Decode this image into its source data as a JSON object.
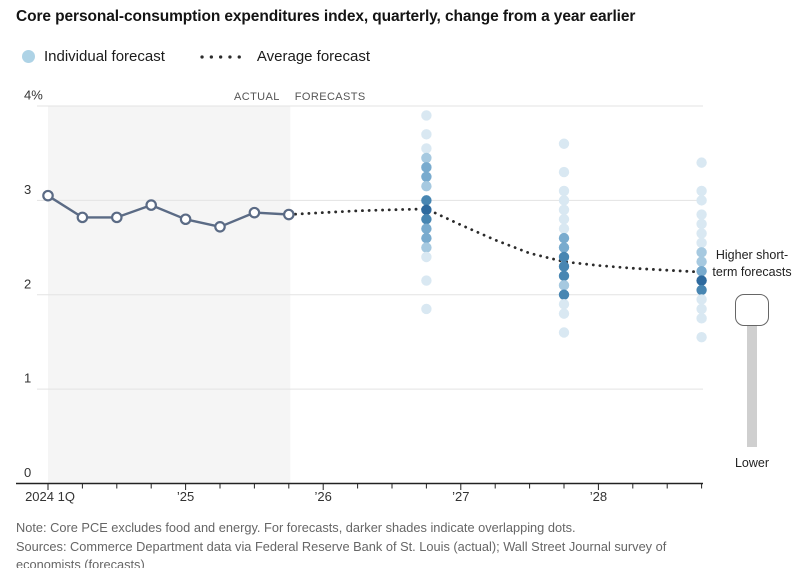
{
  "title": "Core personal-consumption expenditures index, quarterly, change from a year earlier",
  "legend": {
    "individual_label": "Individual forecast",
    "average_label": "Average forecast"
  },
  "annotation": {
    "higher_label": "Higher short-term forecasts",
    "lower_label": "Lower"
  },
  "notes": {
    "line1": "Note: Core PCE excludes food and energy. For forecasts, darker shades indicate overlapping dots.",
    "line2": "Sources: Commerce Department data via Federal Reserve Bank of St. Louis (actual); Wall Street Journal survey of",
    "line3": "economists (forecasts)"
  },
  "colors": {
    "dot_shades": [
      "#d9e8f2",
      "#a6c9e0",
      "#79abce",
      "#4886b2",
      "#2e6a9e"
    ],
    "legend_dot": "#aed3e6",
    "actual_line": "#5b6b85",
    "average_line": "#2b2b2b",
    "gridline": "#e3e3e3",
    "axis": "#222222",
    "tick_label": "#333333",
    "region_label": "#555555",
    "actual_region": "#f5f5f5",
    "slider_track": "#cfcfcf"
  },
  "chart_data": {
    "type": "line",
    "title": "Core personal-consumption expenditures index, quarterly, change from a year earlier",
    "ylim": [
      0,
      4
    ],
    "grid": true,
    "y_ticks": [
      {
        "value": 0,
        "label": "0"
      },
      {
        "value": 1,
        "label": "1"
      },
      {
        "value": 2,
        "label": "2"
      },
      {
        "value": 3,
        "label": "3"
      },
      {
        "value": 4,
        "label": "4%"
      }
    ],
    "x_quarter_count": 20,
    "x_year_labels": [
      {
        "q": 0,
        "label": "2024 1Q"
      },
      {
        "q": 4,
        "label": "’25"
      },
      {
        "q": 8,
        "label": "’26"
      },
      {
        "q": 12,
        "label": "’27"
      },
      {
        "q": 16,
        "label": "’28"
      }
    ],
    "regions": {
      "actual_label": "ACTUAL",
      "forecasts_label": "FORECASTS",
      "actual_span_q": [
        0,
        7
      ]
    },
    "actual_series": {
      "name": "Actual",
      "start_quarter": "2024 1Q",
      "x_q": [
        0,
        1,
        2,
        3,
        4,
        5,
        6,
        7
      ],
      "values": [
        3.05,
        2.82,
        2.82,
        2.95,
        2.8,
        2.72,
        2.87,
        2.85
      ]
    },
    "average_forecast_series": {
      "name": "Average forecast",
      "x_q": [
        7,
        8,
        9,
        10,
        11,
        12,
        13,
        14,
        15,
        16,
        17,
        18,
        19
      ],
      "values": [
        2.85,
        2.87,
        2.89,
        2.9,
        2.91,
        2.74,
        2.58,
        2.44,
        2.35,
        2.31,
        2.28,
        2.26,
        2.24
      ]
    },
    "individual_forecasts": [
      {
        "quarter": "2026 4Q",
        "x_q": 11,
        "dots": [
          {
            "value": 3.9,
            "shade": 1
          },
          {
            "value": 3.7,
            "shade": 1
          },
          {
            "value": 3.55,
            "shade": 1
          },
          {
            "value": 3.45,
            "shade": 2
          },
          {
            "value": 3.35,
            "shade": 3
          },
          {
            "value": 3.25,
            "shade": 3
          },
          {
            "value": 3.15,
            "shade": 2
          },
          {
            "value": 3.0,
            "shade": 4
          },
          {
            "value": 2.9,
            "shade": 5
          },
          {
            "value": 2.8,
            "shade": 4
          },
          {
            "value": 2.7,
            "shade": 3
          },
          {
            "value": 2.6,
            "shade": 3
          },
          {
            "value": 2.5,
            "shade": 2
          },
          {
            "value": 2.4,
            "shade": 1
          },
          {
            "value": 2.15,
            "shade": 1
          },
          {
            "value": 1.85,
            "shade": 1
          }
        ]
      },
      {
        "quarter": "2027 4Q",
        "x_q": 15,
        "dots": [
          {
            "value": 3.6,
            "shade": 1
          },
          {
            "value": 3.3,
            "shade": 1
          },
          {
            "value": 3.1,
            "shade": 1
          },
          {
            "value": 3.0,
            "shade": 1
          },
          {
            "value": 2.9,
            "shade": 1
          },
          {
            "value": 2.8,
            "shade": 1
          },
          {
            "value": 2.7,
            "shade": 1
          },
          {
            "value": 2.6,
            "shade": 3
          },
          {
            "value": 2.5,
            "shade": 3
          },
          {
            "value": 2.4,
            "shade": 4
          },
          {
            "value": 2.3,
            "shade": 4
          },
          {
            "value": 2.2,
            "shade": 4
          },
          {
            "value": 2.1,
            "shade": 2
          },
          {
            "value": 2.0,
            "shade": 4
          },
          {
            "value": 1.9,
            "shade": 1
          },
          {
            "value": 1.8,
            "shade": 1
          },
          {
            "value": 1.6,
            "shade": 1
          }
        ]
      },
      {
        "quarter": "2028 4Q",
        "x_q": 19,
        "dots": [
          {
            "value": 3.4,
            "shade": 1
          },
          {
            "value": 3.1,
            "shade": 1
          },
          {
            "value": 3.0,
            "shade": 1
          },
          {
            "value": 2.85,
            "shade": 1
          },
          {
            "value": 2.75,
            "shade": 1
          },
          {
            "value": 2.65,
            "shade": 1
          },
          {
            "value": 2.55,
            "shade": 1
          },
          {
            "value": 2.45,
            "shade": 2
          },
          {
            "value": 2.35,
            "shade": 2
          },
          {
            "value": 2.25,
            "shade": 3
          },
          {
            "value": 2.15,
            "shade": 5
          },
          {
            "value": 2.05,
            "shade": 4
          },
          {
            "value": 1.95,
            "shade": 1
          },
          {
            "value": 1.85,
            "shade": 1
          },
          {
            "value": 1.75,
            "shade": 1
          },
          {
            "value": 1.55,
            "shade": 1
          }
        ]
      }
    ]
  }
}
